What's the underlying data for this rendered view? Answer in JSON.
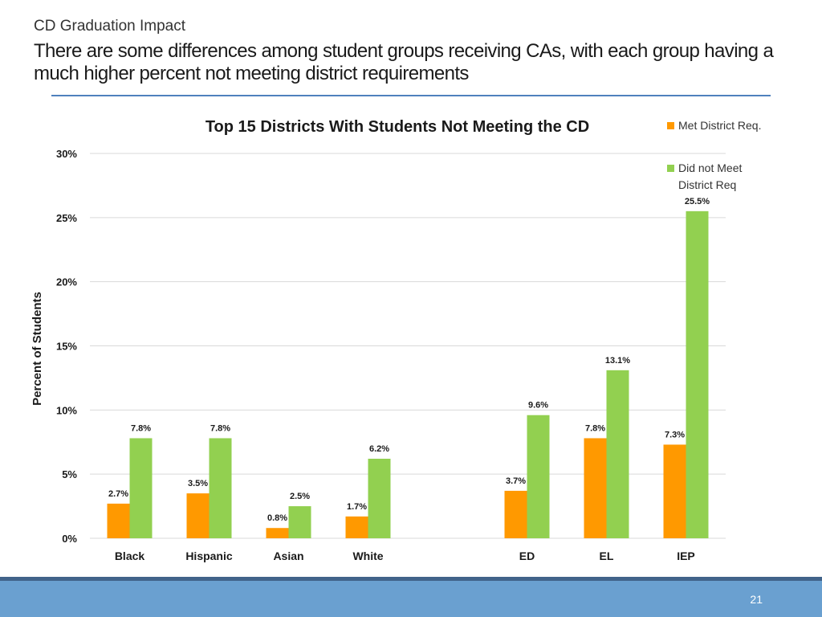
{
  "header": {
    "label": "CD Graduation Impact",
    "title": "There are some differences among student groups receiving CAs, with each group having a much higher percent not meeting district requirements"
  },
  "footer": {
    "page_number": "21"
  },
  "colors": {
    "met": "#ff9900",
    "not_met": "#92d050",
    "rule": "#4f81bd",
    "footer": "#6aa0d0"
  },
  "chart_data": {
    "type": "bar",
    "title": "Top 15 Districts With Students Not Meeting the CD",
    "xlabel": "",
    "ylabel": "Percent of Students",
    "ylim": [
      0,
      30
    ],
    "yticks": [
      0,
      5,
      10,
      15,
      20,
      25,
      30
    ],
    "ytick_labels": [
      "0%",
      "5%",
      "10%",
      "15%",
      "20%",
      "25%",
      "30%"
    ],
    "grid": true,
    "legend_position": "top-right",
    "categories": [
      "Black",
      "Hispanic",
      "Asian",
      "White",
      "",
      "ED",
      "EL",
      "IEP"
    ],
    "series": [
      {
        "name": "Met District Req.",
        "values": [
          2.7,
          3.5,
          0.8,
          1.7,
          null,
          3.7,
          7.8,
          7.3
        ],
        "labels": [
          "2.7%",
          "3.5%",
          "0.8%",
          "1.7%",
          "",
          "3.7%",
          "7.8%",
          "7.3%"
        ]
      },
      {
        "name": "Did not Meet District Req",
        "values": [
          7.8,
          7.8,
          2.5,
          6.2,
          null,
          9.6,
          13.1,
          25.5
        ],
        "labels": [
          "7.8%",
          "7.8%",
          "2.5%",
          "6.2%",
          "",
          "9.6%",
          "13.1%",
          "25.5%"
        ]
      }
    ]
  }
}
